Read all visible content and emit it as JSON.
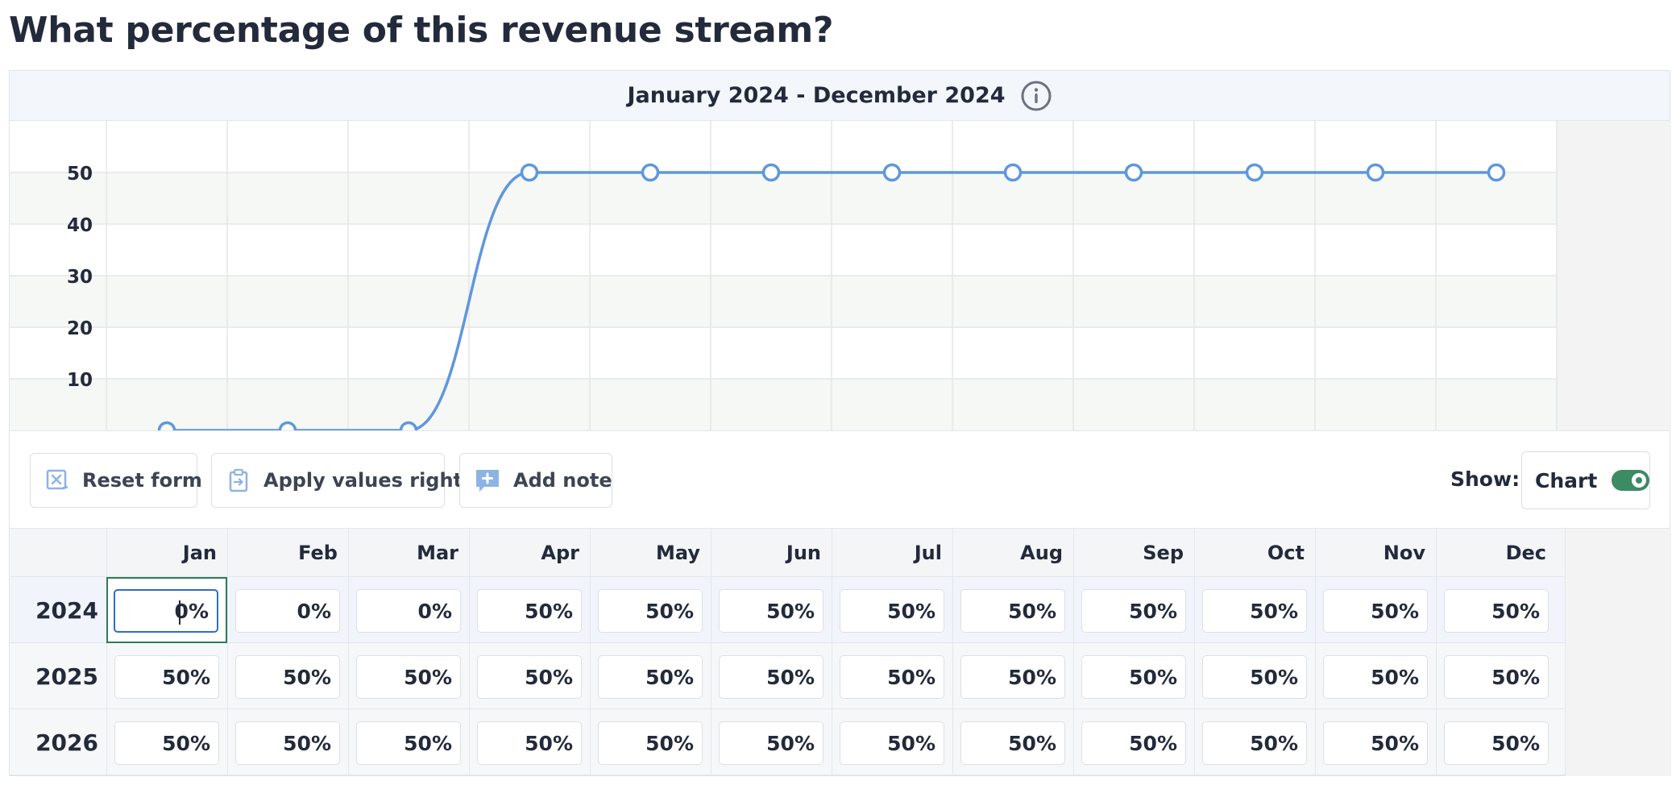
{
  "title": "What percentage of this revenue stream?",
  "date_range": "January 2024 - December 2024",
  "icons": {
    "info": "info-icon",
    "reset": "reset-form-icon",
    "apply": "clipboard-apply-icon",
    "note": "add-note-icon"
  },
  "colors": {
    "line": "#5f97dc",
    "toggle_on": "#3c8b63",
    "focus_border": "#2f7a57",
    "icon_blue": "#8db3e4"
  },
  "actions": {
    "reset_label": "Reset form",
    "apply_label": "Apply values right",
    "note_label": "Add note",
    "show_label": "Show:",
    "chart_toggle_label": "Chart",
    "chart_toggle_on": true
  },
  "months": [
    "Jan",
    "Feb",
    "Mar",
    "Apr",
    "May",
    "Jun",
    "Jul",
    "Aug",
    "Sep",
    "Oct",
    "Nov",
    "Dec"
  ],
  "rows": [
    {
      "year": "2024",
      "values": [
        "0%",
        "0%",
        "0%",
        "50%",
        "50%",
        "50%",
        "50%",
        "50%",
        "50%",
        "50%",
        "50%",
        "50%"
      ]
    },
    {
      "year": "2025",
      "values": [
        "50%",
        "50%",
        "50%",
        "50%",
        "50%",
        "50%",
        "50%",
        "50%",
        "50%",
        "50%",
        "50%",
        "50%"
      ]
    },
    {
      "year": "2026",
      "values": [
        "50%",
        "50%",
        "50%",
        "50%",
        "50%",
        "50%",
        "50%",
        "50%",
        "50%",
        "50%",
        "50%",
        "50%"
      ]
    }
  ],
  "chart_data": {
    "type": "line",
    "x": [
      "Jan",
      "Feb",
      "Mar",
      "Apr",
      "May",
      "Jun",
      "Jul",
      "Aug",
      "Sep",
      "Oct",
      "Nov",
      "Dec"
    ],
    "series": [
      {
        "name": "2024",
        "values": [
          0,
          0,
          0,
          50,
          50,
          50,
          50,
          50,
          50,
          50,
          50,
          50
        ]
      }
    ],
    "yticks": [
      10,
      20,
      30,
      40,
      50
    ],
    "ylim": [
      0,
      60
    ],
    "title": "",
    "xlabel": "",
    "ylabel": "",
    "grid": true
  }
}
